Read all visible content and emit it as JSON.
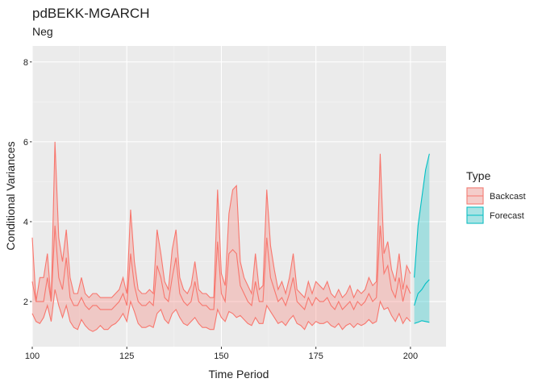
{
  "chart_data": {
    "type": "ribbon",
    "title": "pdBEKK-MGARCH",
    "subtitle": "Neg",
    "x_label": "Time Period",
    "y_label": "Conditional Variances",
    "legend_title": "Type",
    "xlim": [
      100,
      209.4
    ],
    "ylim": [
      0.87,
      8.4
    ],
    "xticks": [
      100,
      125,
      150,
      175,
      200
    ],
    "yticks": [
      2,
      4,
      6,
      8
    ],
    "grid": true,
    "legend": "right",
    "series": [
      {
        "name": "Backcast",
        "color": "#F8766D",
        "x": [
          100,
          101,
          102,
          103,
          104,
          105,
          106,
          107,
          108,
          109,
          110,
          111,
          112,
          113,
          114,
          115,
          116,
          117,
          118,
          119,
          120,
          121,
          122,
          123,
          124,
          125,
          126,
          127,
          128,
          129,
          130,
          131,
          132,
          133,
          134,
          135,
          136,
          137,
          138,
          139,
          140,
          141,
          142,
          143,
          144,
          145,
          146,
          147,
          148,
          149,
          150,
          151,
          152,
          153,
          154,
          155,
          156,
          157,
          158,
          159,
          160,
          161,
          162,
          163,
          164,
          165,
          166,
          167,
          168,
          169,
          170,
          171,
          172,
          173,
          174,
          175,
          176,
          177,
          178,
          179,
          180,
          181,
          182,
          183,
          184,
          185,
          186,
          187,
          188,
          189,
          190,
          191,
          192,
          193,
          194,
          195,
          196,
          197,
          198,
          199,
          200
        ],
        "upper": [
          3.6,
          2.0,
          2.6,
          2.6,
          3.2,
          2.0,
          6.0,
          3.6,
          3.0,
          3.8,
          2.6,
          2.2,
          2.2,
          2.6,
          2.2,
          2.1,
          2.2,
          2.2,
          2.1,
          2.1,
          2.1,
          2.1,
          2.2,
          2.3,
          2.6,
          2.2,
          4.3,
          3.0,
          2.3,
          2.2,
          2.2,
          2.3,
          2.2,
          3.8,
          3.2,
          2.5,
          2.3,
          3.3,
          3.8,
          2.6,
          2.3,
          2.2,
          2.4,
          3.0,
          2.3,
          2.2,
          2.2,
          2.1,
          2.1,
          4.8,
          2.7,
          2.4,
          4.2,
          4.8,
          4.9,
          3.0,
          2.6,
          2.4,
          2.2,
          3.2,
          2.3,
          2.4,
          4.8,
          3.4,
          2.8,
          2.3,
          2.5,
          2.2,
          2.6,
          3.2,
          2.3,
          2.2,
          2.1,
          2.5,
          2.2,
          2.5,
          2.4,
          2.3,
          2.5,
          2.2,
          2.1,
          2.3,
          2.1,
          2.2,
          2.4,
          2.1,
          2.3,
          2.2,
          2.3,
          2.6,
          2.4,
          2.5,
          5.7,
          3.2,
          3.5,
          2.8,
          2.5,
          3.2,
          2.3,
          2.9,
          2.7
        ],
        "mid": [
          2.5,
          2.0,
          2.0,
          2.0,
          2.6,
          2.0,
          3.9,
          2.6,
          2.3,
          3.1,
          2.1,
          1.9,
          1.9,
          2.1,
          1.9,
          1.8,
          1.9,
          1.9,
          1.8,
          1.8,
          1.8,
          1.8,
          1.9,
          2.0,
          2.2,
          1.9,
          3.2,
          2.4,
          2.0,
          1.9,
          1.9,
          2.0,
          1.9,
          2.9,
          2.6,
          2.1,
          2.0,
          2.6,
          3.1,
          2.2,
          2.0,
          1.9,
          2.0,
          2.5,
          2.0,
          1.9,
          1.9,
          1.8,
          1.8,
          3.5,
          2.2,
          2.0,
          3.2,
          3.3,
          3.2,
          2.4,
          2.2,
          2.0,
          1.9,
          2.5,
          2.0,
          2.0,
          3.6,
          2.6,
          2.3,
          2.0,
          2.1,
          1.9,
          2.2,
          2.6,
          2.0,
          1.9,
          1.8,
          2.1,
          1.9,
          2.1,
          2.0,
          2.0,
          2.1,
          1.9,
          1.8,
          2.0,
          1.8,
          1.9,
          2.0,
          1.8,
          2.0,
          1.9,
          2.0,
          2.2,
          2.0,
          2.1,
          3.9,
          2.7,
          2.9,
          2.3,
          2.1,
          2.6,
          2.0,
          2.4,
          2.2
        ],
        "lower": [
          1.7,
          1.5,
          1.45,
          1.6,
          1.9,
          1.5,
          2.3,
          1.9,
          1.6,
          1.9,
          1.5,
          1.35,
          1.3,
          1.55,
          1.4,
          1.3,
          1.25,
          1.3,
          1.4,
          1.3,
          1.3,
          1.4,
          1.45,
          1.55,
          1.7,
          1.5,
          2.0,
          1.75,
          1.45,
          1.35,
          1.35,
          1.4,
          1.35,
          1.7,
          1.8,
          1.55,
          1.45,
          1.7,
          1.8,
          1.6,
          1.45,
          1.4,
          1.5,
          1.6,
          1.45,
          1.35,
          1.35,
          1.3,
          1.3,
          1.8,
          1.6,
          1.5,
          1.75,
          1.7,
          1.6,
          1.65,
          1.55,
          1.45,
          1.4,
          1.6,
          1.45,
          1.45,
          1.9,
          1.75,
          1.6,
          1.45,
          1.5,
          1.4,
          1.55,
          1.65,
          1.45,
          1.4,
          1.3,
          1.5,
          1.4,
          1.5,
          1.45,
          1.45,
          1.5,
          1.4,
          1.35,
          1.45,
          1.3,
          1.4,
          1.45,
          1.35,
          1.45,
          1.4,
          1.45,
          1.55,
          1.45,
          1.5,
          2.0,
          1.8,
          1.85,
          1.65,
          1.5,
          1.7,
          1.45,
          1.6,
          1.5
        ]
      },
      {
        "name": "Forecast",
        "color": "#00BFC4",
        "x": [
          201,
          202,
          203,
          204,
          205
        ],
        "upper": [
          2.6,
          3.9,
          4.6,
          5.3,
          5.7
        ],
        "mid": [
          1.9,
          2.2,
          2.3,
          2.45,
          2.55
        ],
        "lower": [
          1.45,
          1.48,
          1.52,
          1.5,
          1.48
        ]
      }
    ]
  }
}
